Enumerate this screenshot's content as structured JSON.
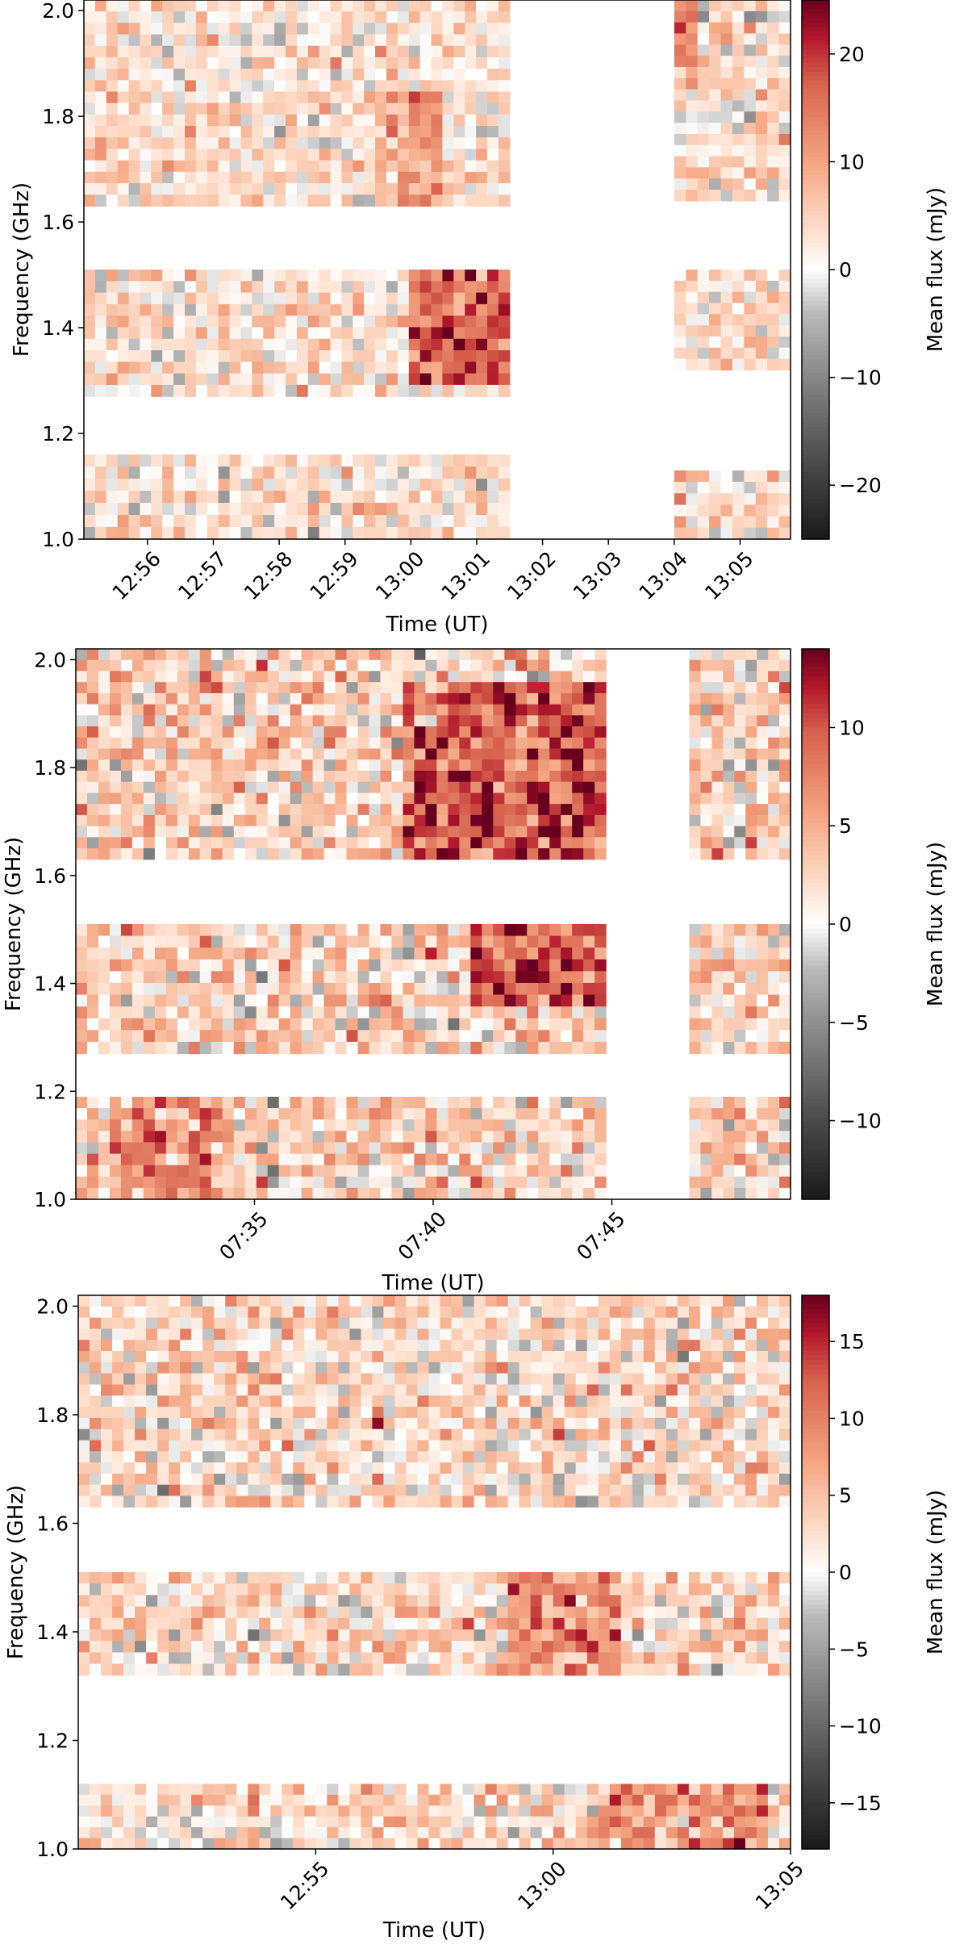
{
  "colors": {
    "negative_max": "#1a1a1a",
    "neutral": "#ffffff",
    "positive_max": "#67001f",
    "colormap": "RdGy_r"
  },
  "chart_data": [
    {
      "type": "heatmap",
      "xlabel": "Time (UT)",
      "ylabel": "Frequency (GHz)",
      "colorbar_label": "Mean flux (mJy)",
      "clim": [
        -25,
        25
      ],
      "colorbar_ticks": [
        -20,
        -10,
        0,
        10,
        20
      ],
      "xticks": [
        "12:56",
        "12:57",
        "12:58",
        "12:59",
        "13:00",
        "13:01",
        "13:02",
        "13:03",
        "13:04",
        "13:05"
      ],
      "xlim": [
        "12:55:02",
        "13:05:46"
      ],
      "ylim": [
        1.0,
        2.02
      ],
      "yticks": [
        1.0,
        1.2,
        1.4,
        1.6,
        1.8,
        2.0
      ],
      "data_time_ranges": [
        [
          "12:55:02",
          "13:01:30"
        ],
        [
          "13:04:00",
          "13:05:46"
        ]
      ],
      "frequency_bands_ghz": [
        {
          "segment": 0,
          "bands": [
            [
              1.0,
              1.16
            ],
            [
              1.27,
              1.51
            ],
            [
              1.63,
              2.02
            ]
          ]
        },
        {
          "segment": 1,
          "bands": [
            [
              1.0,
              1.13
            ],
            [
              1.32,
              1.51
            ],
            [
              1.64,
              2.02
            ]
          ]
        }
      ],
      "bright_regions": [
        {
          "time": [
            "13:00:00",
            "13:01:30"
          ],
          "freq": [
            1.3,
            1.51
          ],
          "flux_mjy": 15
        },
        {
          "time": [
            "12:59:30",
            "13:00:30"
          ],
          "freq": [
            1.63,
            1.85
          ],
          "flux_mjy": 9
        },
        {
          "time": [
            "13:04:00",
            "13:04:20"
          ],
          "freq": [
            1.85,
            2.02
          ],
          "flux_mjy": 10
        }
      ],
      "noise_mean_mjy": 3,
      "noise_std_mjy": 4
    },
    {
      "type": "heatmap",
      "xlabel": "Time (UT)",
      "ylabel": "Frequency (GHz)",
      "colorbar_label": "Mean flux (mJy)",
      "clim": [
        -14,
        14
      ],
      "colorbar_ticks": [
        -10,
        -5,
        0,
        5,
        10
      ],
      "xticks": [
        "07:35",
        "07:40",
        "07:45"
      ],
      "xlim": [
        "07:30:00",
        "07:50:00"
      ],
      "ylim": [
        1.0,
        2.02
      ],
      "yticks": [
        1.0,
        1.2,
        1.4,
        1.6,
        1.8,
        2.0
      ],
      "data_time_ranges": [
        [
          "07:30:00",
          "07:44:50"
        ],
        [
          "07:47:10",
          "07:50:00"
        ]
      ],
      "frequency_bands_ghz": [
        {
          "segment": 0,
          "bands": [
            [
              1.0,
              1.19
            ],
            [
              1.27,
              1.51
            ],
            [
              1.63,
              2.02
            ]
          ]
        },
        {
          "segment": 1,
          "bands": [
            [
              1.0,
              1.19
            ],
            [
              1.27,
              1.51
            ],
            [
              1.63,
              2.02
            ]
          ]
        }
      ],
      "bright_regions": [
        {
          "time": [
            "07:39:00",
            "07:44:50"
          ],
          "freq": [
            1.63,
            1.95
          ],
          "flux_mjy": 8
        },
        {
          "time": [
            "07:41:00",
            "07:44:50"
          ],
          "freq": [
            1.35,
            1.51
          ],
          "flux_mjy": 8
        },
        {
          "time": [
            "07:31:00",
            "07:34:00"
          ],
          "freq": [
            1.0,
            1.19
          ],
          "flux_mjy": 5
        }
      ],
      "noise_mean_mjy": 2.5,
      "noise_std_mjy": 3
    },
    {
      "type": "heatmap",
      "xlabel": "Time (UT)",
      "ylabel": "Frequency (GHz)",
      "colorbar_label": "Mean flux (mJy)",
      "clim": [
        -18,
        18
      ],
      "colorbar_ticks": [
        -15,
        -10,
        -5,
        0,
        5,
        10,
        15
      ],
      "xticks": [
        "12:55",
        "13:00",
        "13:05"
      ],
      "xlim": [
        "12:50:00",
        "13:05:00"
      ],
      "ylim": [
        1.0,
        2.02
      ],
      "yticks": [
        1.0,
        1.2,
        1.4,
        1.6,
        1.8,
        2.0
      ],
      "data_time_ranges": [
        [
          "12:50:00",
          "13:05:00"
        ]
      ],
      "frequency_bands_ghz": [
        {
          "segment": 0,
          "bands": [
            [
              1.0,
              1.12
            ],
            [
              1.32,
              1.51
            ],
            [
              1.63,
              2.02
            ]
          ]
        }
      ],
      "bright_regions": [
        {
          "time": [
            "12:59:00",
            "13:01:30"
          ],
          "freq": [
            1.32,
            1.51
          ],
          "flux_mjy": 7
        },
        {
          "time": [
            "13:01:00",
            "13:04:30"
          ],
          "freq": [
            1.0,
            1.12
          ],
          "flux_mjy": 7
        }
      ],
      "noise_mean_mjy": 2.5,
      "noise_std_mjy": 3.5
    }
  ]
}
